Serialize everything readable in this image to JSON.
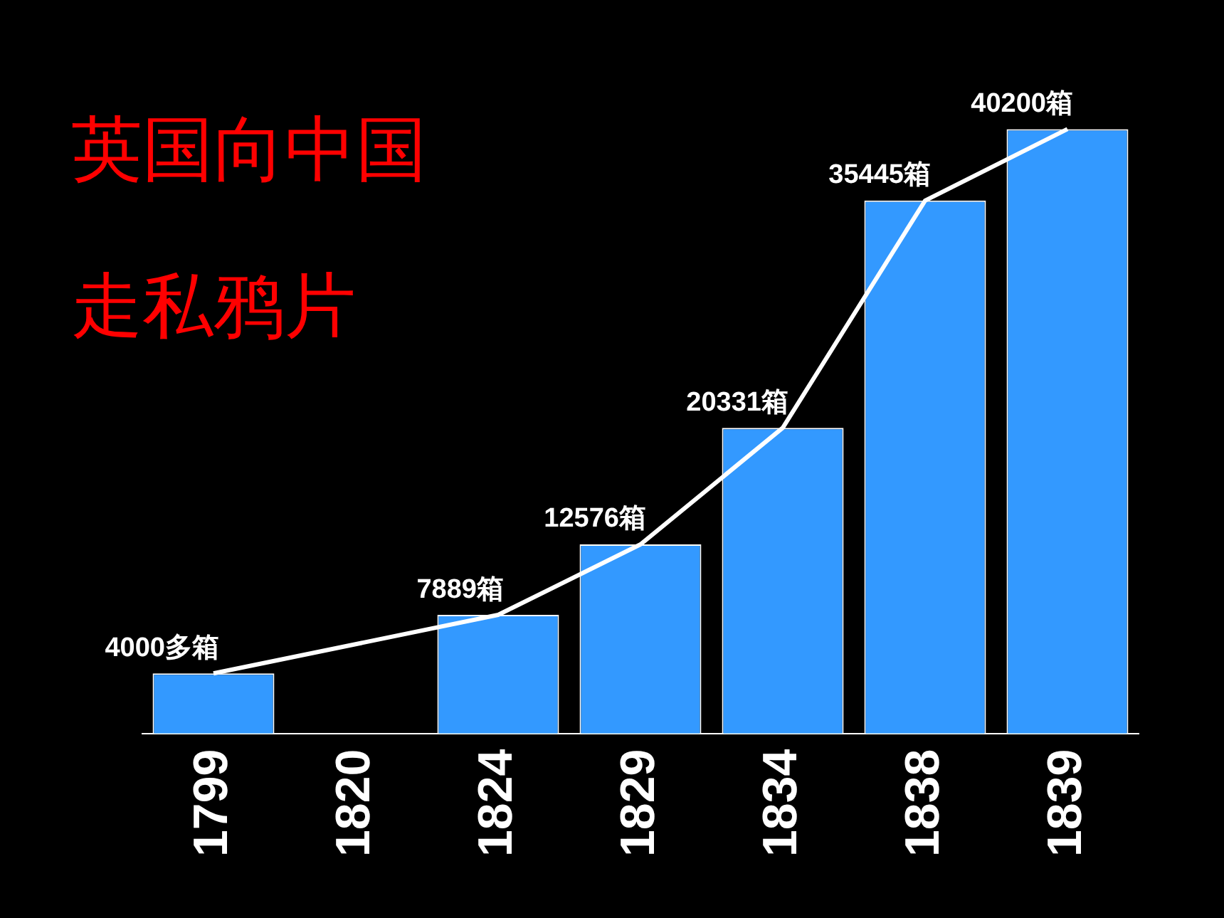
{
  "chart_data": {
    "type": "bar",
    "title": "英国向中国走私鸦片",
    "categories": [
      "1799",
      "1820",
      "1824",
      "1829",
      "1834",
      "1838",
      "1839"
    ],
    "series": [
      {
        "color": "#3399ff",
        "values": [
          4000,
          null,
          7889,
          12576,
          20331,
          35445,
          40200
        ],
        "value_labels": [
          "4000多箱",
          null,
          "7889箱",
          "12576箱",
          "20331箱",
          "35445箱",
          "40200箱"
        ]
      },
      {
        "type": "line",
        "color": "#ffffff",
        "values": [
          4000,
          null,
          7889,
          12576,
          20331,
          35445,
          40200
        ]
      }
    ],
    "marker": "none",
    "grid": false,
    "legend": false,
    "tick_labels": "x"
  }
}
